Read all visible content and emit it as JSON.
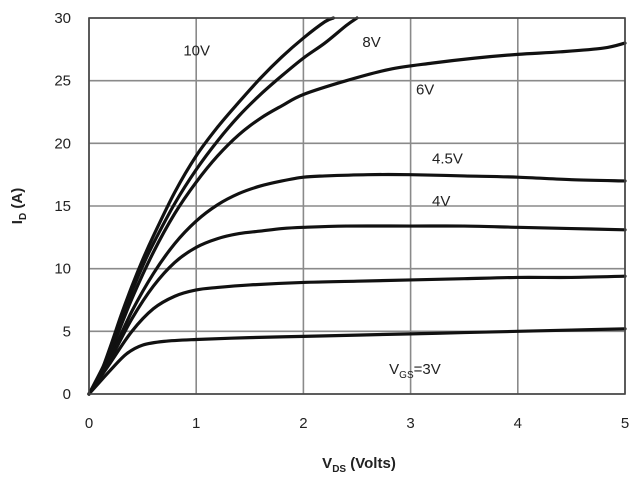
{
  "chart_data": {
    "type": "line",
    "title": "",
    "xlabel": {
      "main": "V",
      "sub": "DS",
      "rest": " (Volts)"
    },
    "ylabel": {
      "main": "I",
      "sub": "D",
      "rest": " (A)"
    },
    "xlim": [
      0,
      5
    ],
    "ylim": [
      0,
      30
    ],
    "xticks": [
      "0",
      "1",
      "2",
      "3",
      "4",
      "5"
    ],
    "yticks": [
      "0",
      "5",
      "10",
      "15",
      "20",
      "25",
      "30"
    ],
    "grid": true,
    "series": [
      {
        "name": "10V",
        "x": [
          0,
          0.1,
          0.2,
          0.3,
          0.4,
          0.5,
          0.6,
          0.8,
          1.0,
          1.2,
          1.4,
          1.6,
          1.8,
          2.0,
          2.2,
          2.28
        ],
        "y": [
          0,
          1.5,
          3.8,
          6.3,
          8.6,
          10.7,
          12.6,
          16.1,
          19.0,
          21.3,
          23.3,
          25.2,
          26.9,
          28.4,
          29.7,
          30
        ]
      },
      {
        "name": "8V",
        "x": [
          0,
          0.1,
          0.2,
          0.3,
          0.4,
          0.5,
          0.6,
          0.8,
          1.0,
          1.2,
          1.4,
          1.6,
          1.8,
          2.0,
          2.2,
          2.4,
          2.5
        ],
        "y": [
          0,
          1.5,
          3.6,
          6.0,
          8.2,
          10.2,
          12.0,
          15.2,
          17.9,
          20.2,
          22.2,
          23.9,
          25.4,
          26.8,
          28.0,
          29.4,
          30
        ]
      },
      {
        "name": "6V",
        "x": [
          0,
          0.2,
          0.4,
          0.6,
          0.8,
          1.0,
          1.2,
          1.4,
          1.6,
          1.8,
          2.0,
          2.4,
          2.8,
          3.2,
          3.6,
          4.0,
          4.4,
          4.8,
          5.0
        ],
        "y": [
          0,
          3.4,
          7.6,
          11.3,
          14.4,
          16.9,
          19.0,
          20.7,
          22.0,
          23.0,
          23.9,
          25.0,
          25.9,
          26.4,
          26.8,
          27.1,
          27.3,
          27.6,
          28.0
        ]
      },
      {
        "name": "4.5V",
        "x": [
          0,
          0.2,
          0.4,
          0.6,
          0.8,
          1.0,
          1.2,
          1.4,
          1.6,
          1.8,
          2.0,
          2.2,
          2.6,
          3.0,
          3.5,
          4.0,
          4.5,
          5.0
        ],
        "y": [
          0,
          3.0,
          6.6,
          9.6,
          12.0,
          13.8,
          15.1,
          16.0,
          16.6,
          17.0,
          17.3,
          17.4,
          17.5,
          17.5,
          17.4,
          17.3,
          17.1,
          17.0
        ]
      },
      {
        "name": "4V",
        "x": [
          0,
          0.2,
          0.4,
          0.6,
          0.8,
          1.0,
          1.2,
          1.4,
          1.6,
          1.8,
          2.0,
          2.4,
          3.0,
          3.5,
          4.0,
          4.5,
          5.0
        ],
        "y": [
          0,
          2.8,
          6.0,
          8.6,
          10.5,
          11.7,
          12.4,
          12.8,
          13.0,
          13.2,
          13.3,
          13.4,
          13.4,
          13.4,
          13.3,
          13.2,
          13.1
        ]
      },
      {
        "name": "",
        "x": [
          0,
          0.2,
          0.4,
          0.6,
          0.8,
          1.0,
          1.2,
          1.5,
          2.0,
          2.5,
          3.0,
          3.5,
          4.0,
          4.5,
          5.0
        ],
        "y": [
          0,
          2.5,
          5.0,
          6.8,
          7.8,
          8.3,
          8.5,
          8.7,
          8.9,
          9.0,
          9.1,
          9.2,
          9.3,
          9.3,
          9.4
        ]
      },
      {
        "name": "3V",
        "x": [
          0,
          0.2,
          0.35,
          0.5,
          0.7,
          1.0,
          1.5,
          2.0,
          2.5,
          3.0,
          3.5,
          4.0,
          4.5,
          5.0
        ],
        "y": [
          0,
          1.9,
          3.2,
          3.9,
          4.2,
          4.35,
          4.5,
          4.6,
          4.7,
          4.8,
          4.9,
          5.0,
          5.1,
          5.2
        ]
      }
    ],
    "curve_labels": [
      {
        "text": "10V",
        "x": 0.88,
        "y": 27.0
      },
      {
        "text": "8V",
        "x": 2.55,
        "y": 27.7
      },
      {
        "text": "6V",
        "x": 3.05,
        "y": 23.9
      },
      {
        "text": "4.5V",
        "x": 3.2,
        "y": 18.4
      },
      {
        "text": "4V",
        "x": 3.2,
        "y": 15.0
      },
      {
        "text": "V",
        "sub": "GS",
        "rest": "=3V",
        "x": 2.8,
        "y": 1.6
      }
    ]
  }
}
